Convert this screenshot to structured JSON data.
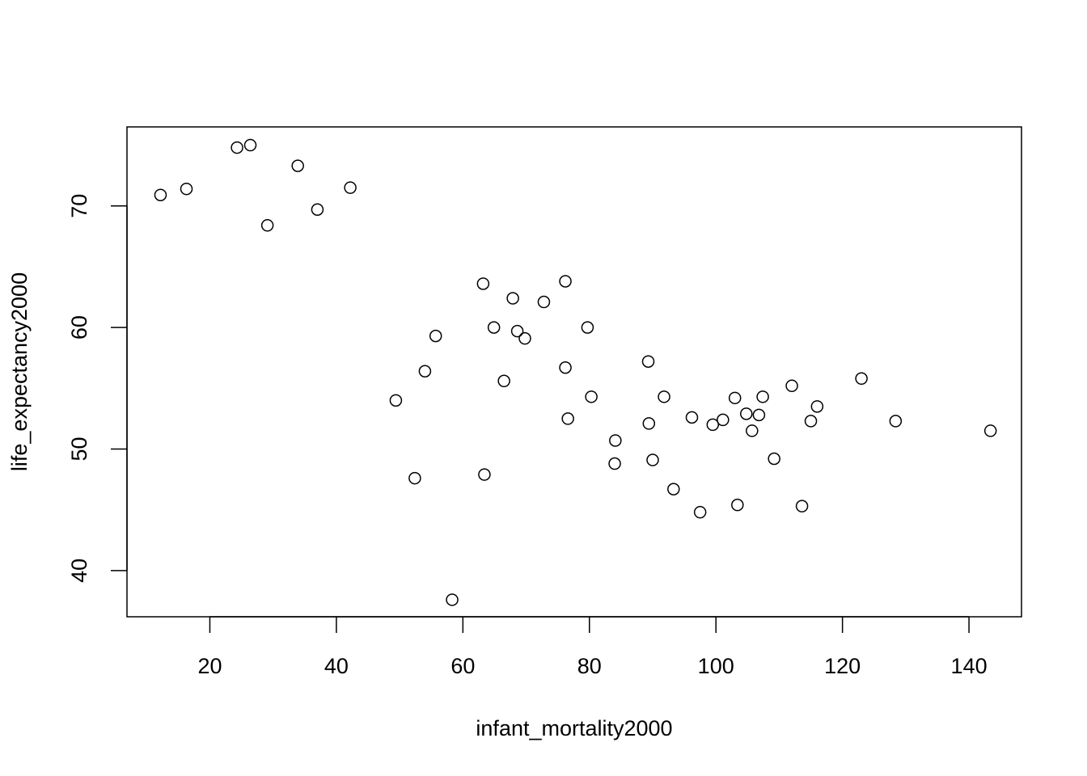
{
  "chart_data": {
    "type": "scatter",
    "title": "",
    "xlabel": "infant_mortality2000",
    "ylabel": "life_expectancy2000",
    "xlim": [
      6.9,
      148.3
    ],
    "ylim": [
      36.2,
      76.5
    ],
    "x_ticks": [
      20,
      40,
      60,
      80,
      100,
      120,
      140
    ],
    "y_ticks": [
      40,
      50,
      60,
      70
    ],
    "grid": false,
    "legend": "none",
    "marker": "open-circle",
    "points": [
      {
        "x": 12.2,
        "y": 70.9
      },
      {
        "x": 16.3,
        "y": 71.4
      },
      {
        "x": 24.3,
        "y": 74.8
      },
      {
        "x": 26.4,
        "y": 75.0
      },
      {
        "x": 29.1,
        "y": 68.4
      },
      {
        "x": 33.9,
        "y": 73.3
      },
      {
        "x": 37.0,
        "y": 69.7
      },
      {
        "x": 42.2,
        "y": 71.5
      },
      {
        "x": 49.4,
        "y": 54.0
      },
      {
        "x": 52.4,
        "y": 47.6
      },
      {
        "x": 54.0,
        "y": 56.4
      },
      {
        "x": 55.7,
        "y": 59.3
      },
      {
        "x": 58.3,
        "y": 37.6
      },
      {
        "x": 63.2,
        "y": 63.6
      },
      {
        "x": 63.4,
        "y": 47.9
      },
      {
        "x": 64.9,
        "y": 60.0
      },
      {
        "x": 66.5,
        "y": 55.6
      },
      {
        "x": 67.9,
        "y": 62.4
      },
      {
        "x": 68.6,
        "y": 59.7
      },
      {
        "x": 69.8,
        "y": 59.1
      },
      {
        "x": 72.8,
        "y": 62.1
      },
      {
        "x": 76.2,
        "y": 63.8
      },
      {
        "x": 76.2,
        "y": 56.7
      },
      {
        "x": 76.6,
        "y": 52.5
      },
      {
        "x": 79.7,
        "y": 60.0
      },
      {
        "x": 80.3,
        "y": 54.3
      },
      {
        "x": 84.0,
        "y": 48.8
      },
      {
        "x": 84.1,
        "y": 50.7
      },
      {
        "x": 89.3,
        "y": 57.2
      },
      {
        "x": 89.4,
        "y": 52.1
      },
      {
        "x": 90.0,
        "y": 49.1
      },
      {
        "x": 91.8,
        "y": 54.3
      },
      {
        "x": 93.3,
        "y": 46.7
      },
      {
        "x": 96.2,
        "y": 52.6
      },
      {
        "x": 97.5,
        "y": 44.8
      },
      {
        "x": 99.5,
        "y": 52.0
      },
      {
        "x": 101.1,
        "y": 52.4
      },
      {
        "x": 103.0,
        "y": 54.2
      },
      {
        "x": 103.4,
        "y": 45.4
      },
      {
        "x": 104.8,
        "y": 52.9
      },
      {
        "x": 105.7,
        "y": 51.5
      },
      {
        "x": 106.8,
        "y": 52.8
      },
      {
        "x": 107.4,
        "y": 54.3
      },
      {
        "x": 109.2,
        "y": 49.2
      },
      {
        "x": 112.0,
        "y": 55.2
      },
      {
        "x": 113.6,
        "y": 45.3
      },
      {
        "x": 115.0,
        "y": 52.3
      },
      {
        "x": 116.0,
        "y": 53.5
      },
      {
        "x": 123.0,
        "y": 55.8
      },
      {
        "x": 128.4,
        "y": 52.3
      },
      {
        "x": 143.4,
        "y": 51.5
      }
    ]
  }
}
